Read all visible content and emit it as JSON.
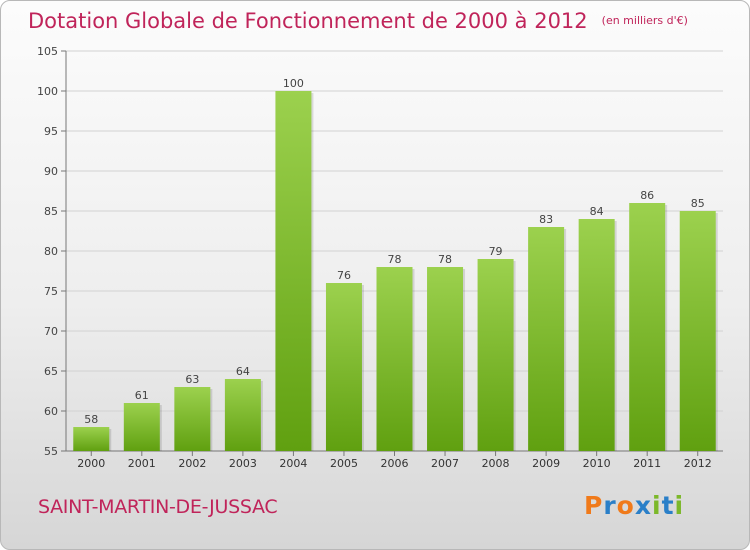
{
  "header": {
    "title": "Dotation Globale de Fonctionnement de 2000 à 2012",
    "subtitle": "(en milliers d'€)"
  },
  "footer": {
    "commune": "SAINT-MARTIN-DE-JUSSAC",
    "logo_text": "Proxiti"
  },
  "colors": {
    "title": "#c0245a",
    "bar_top": "#9cd14e",
    "bar_bottom": "#60a010",
    "logo_letters": [
      "#f07a1a",
      "#2a7fc8",
      "#f07a1a",
      "#2a7fc8",
      "#7cb82a",
      "#2a7fc8",
      "#7cb82a"
    ]
  },
  "chart_data": {
    "type": "bar",
    "title": "Dotation Globale de Fonctionnement de 2000 à 2012",
    "subtitle": "(en milliers d'€)",
    "xlabel": "",
    "ylabel": "",
    "categories": [
      "2000",
      "2001",
      "2002",
      "2003",
      "2004",
      "2005",
      "2006",
      "2007",
      "2008",
      "2009",
      "2010",
      "2011",
      "2012"
    ],
    "values": [
      58,
      61,
      63,
      64,
      100,
      76,
      78,
      78,
      79,
      83,
      84,
      86,
      85
    ],
    "ylim": [
      55,
      105
    ],
    "yticks": [
      55,
      60,
      65,
      70,
      75,
      80,
      85,
      90,
      95,
      100,
      105
    ],
    "grid": true,
    "data_labels": true
  }
}
